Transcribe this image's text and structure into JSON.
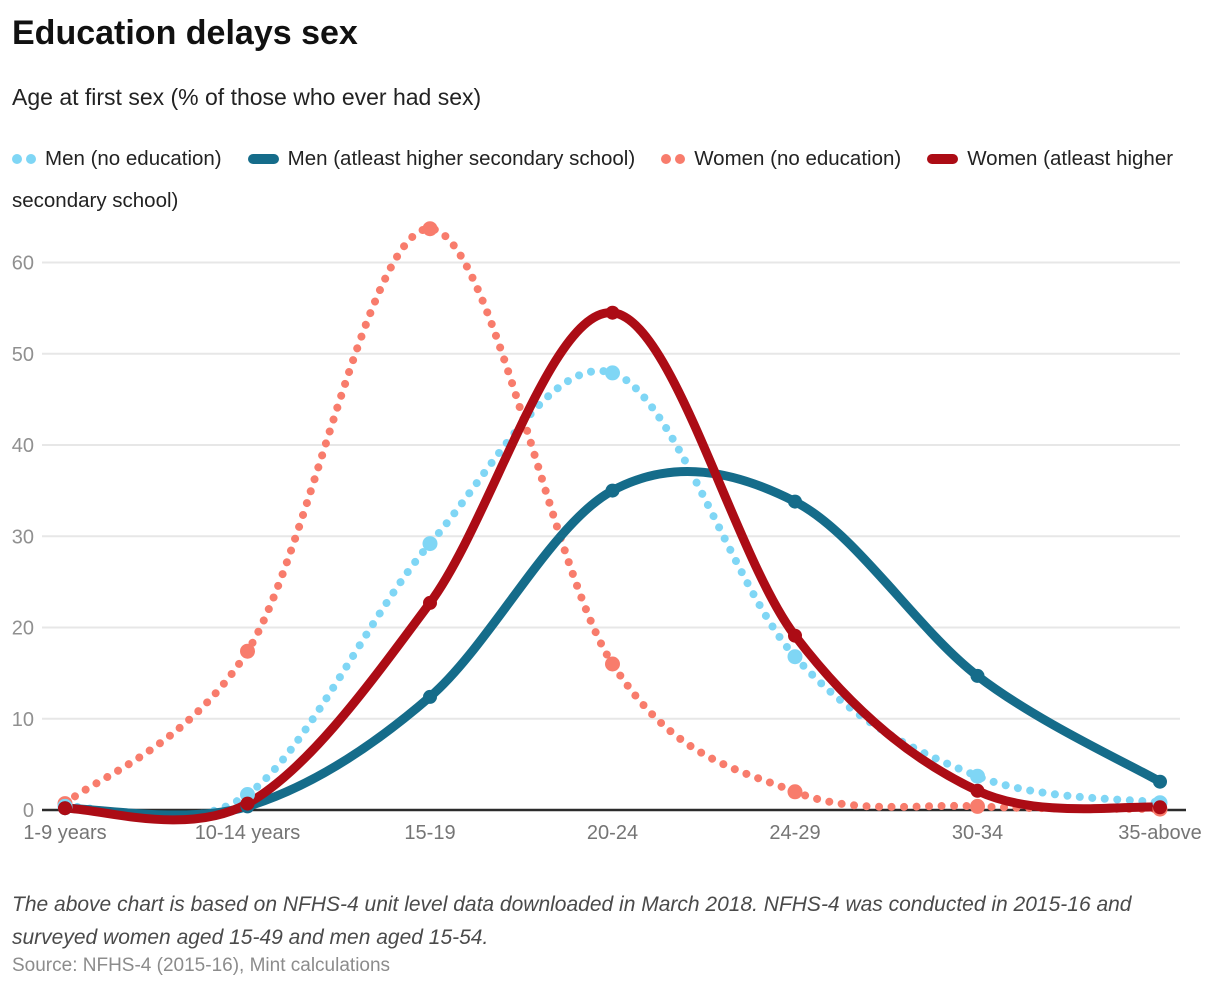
{
  "header": {
    "title": "Education delays sex",
    "subtitle": "Age at first sex (% of those who ever had sex)"
  },
  "footer": {
    "note": "The above chart is based on NFHS-4 unit level data downloaded in March 2018. NFHS-4 was conducted in 2015-16 and surveyed women aged 15-49 and men aged 15-54.",
    "source": "Source: NFHS-4 (2015-16), Mint calculations"
  },
  "chart_data": {
    "type": "line",
    "title": "Education delays sex",
    "subtitle": "Age at first sex (% of those who ever had sex)",
    "categories": [
      "1-9 years",
      "10-14 years",
      "15-19",
      "20-24",
      "24-29",
      "30-34",
      "35-above"
    ],
    "series": [
      {
        "name": "Men (no education)",
        "style": "dotted",
        "color": "#7FD6F5",
        "values": [
          0.4,
          1.7,
          29.2,
          47.9,
          16.8,
          3.7,
          0.8
        ]
      },
      {
        "name": "Men (atleast higher secondary school)",
        "style": "solid",
        "color": "#156C8A",
        "values": [
          0.2,
          0.4,
          12.4,
          35.0,
          33.8,
          14.7,
          3.1
        ]
      },
      {
        "name": "Women (no education)",
        "style": "dotted",
        "color": "#F87C6C",
        "values": [
          0.7,
          17.4,
          63.7,
          16.0,
          2.0,
          0.4,
          0.1
        ]
      },
      {
        "name": "Women (atleast higher secondary school)",
        "style": "solid",
        "color": "#AC0C15",
        "values": [
          0.2,
          0.7,
          22.7,
          54.5,
          19.1,
          2.1,
          0.3
        ]
      }
    ],
    "yticks": [
      0,
      10,
      20,
      30,
      40,
      50,
      60
    ],
    "ylim": [
      0,
      65
    ],
    "grid": true,
    "legend_position": "top",
    "colors": {
      "grid": "#e7e7e7",
      "axis": "#2b2b2b",
      "y_tick_text": "#909090",
      "x_tick_text": "#757575"
    }
  }
}
